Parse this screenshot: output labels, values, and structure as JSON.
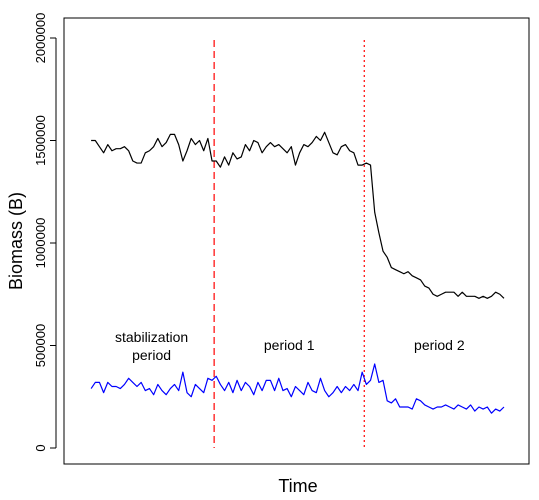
{
  "chart_data": {
    "type": "line",
    "title": "",
    "xlabel": "Time",
    "ylabel": "Biomass (B)",
    "ylim": [
      0,
      2000000
    ],
    "yticks": [
      0,
      500000,
      1000000,
      1500000,
      2000000
    ],
    "ytick_labels": [
      "0",
      "500000",
      "1000000",
      "1500000",
      "2000000"
    ],
    "grid": false,
    "legend": null,
    "x": [
      1,
      2,
      3,
      4,
      5,
      6,
      7,
      8,
      9,
      10,
      11,
      12,
      13,
      14,
      15,
      16,
      17,
      18,
      19,
      20,
      21,
      22,
      23,
      24,
      25,
      26,
      27,
      28,
      29,
      30,
      31,
      32,
      33,
      34,
      35,
      36,
      37,
      38,
      39,
      40,
      41,
      42,
      43,
      44,
      45,
      46,
      47,
      48,
      49,
      50,
      51,
      52,
      53,
      54,
      55,
      56,
      57,
      58,
      59,
      60,
      61,
      62,
      63,
      64,
      65,
      66,
      67,
      68,
      69,
      70,
      71,
      72,
      73,
      74,
      75,
      76,
      77,
      78,
      79,
      80,
      81,
      82,
      83,
      84,
      85,
      86,
      87,
      88,
      89,
      90,
      91,
      92,
      93,
      94,
      95,
      96,
      97,
      98,
      99,
      100
    ],
    "xlim": [
      -5.5,
      106
    ],
    "series": [
      {
        "color": "#000000",
        "values": [
          1500000,
          1500000,
          1470000,
          1440000,
          1480000,
          1450000,
          1460000,
          1460000,
          1470000,
          1450000,
          1400000,
          1390000,
          1390000,
          1440000,
          1450000,
          1470000,
          1510000,
          1470000,
          1490000,
          1530000,
          1530000,
          1480000,
          1400000,
          1450000,
          1510000,
          1480000,
          1500000,
          1450000,
          1510000,
          1400000,
          1400000,
          1370000,
          1420000,
          1380000,
          1440000,
          1410000,
          1420000,
          1480000,
          1450000,
          1500000,
          1490000,
          1440000,
          1470000,
          1490000,
          1470000,
          1480000,
          1460000,
          1440000,
          1470000,
          1380000,
          1440000,
          1480000,
          1470000,
          1490000,
          1520000,
          1500000,
          1540000,
          1490000,
          1440000,
          1430000,
          1470000,
          1480000,
          1450000,
          1440000,
          1380000,
          1380000,
          1390000,
          1380000,
          1150000,
          1050000,
          960000,
          930000,
          880000,
          870000,
          860000,
          850000,
          860000,
          840000,
          830000,
          820000,
          790000,
          780000,
          750000,
          740000,
          750000,
          760000,
          760000,
          760000,
          740000,
          760000,
          740000,
          740000,
          740000,
          730000,
          740000,
          730000,
          740000,
          760000,
          750000,
          730000
        ]
      },
      {
        "color": "#0000ff",
        "values": [
          290000,
          320000,
          320000,
          270000,
          320000,
          300000,
          300000,
          290000,
          310000,
          340000,
          320000,
          300000,
          320000,
          280000,
          290000,
          260000,
          310000,
          280000,
          260000,
          290000,
          310000,
          280000,
          370000,
          270000,
          250000,
          310000,
          290000,
          270000,
          340000,
          330000,
          350000,
          310000,
          280000,
          320000,
          270000,
          330000,
          280000,
          320000,
          300000,
          260000,
          320000,
          280000,
          330000,
          330000,
          280000,
          340000,
          280000,
          290000,
          250000,
          300000,
          280000,
          260000,
          320000,
          280000,
          270000,
          340000,
          280000,
          250000,
          270000,
          300000,
          270000,
          300000,
          280000,
          310000,
          280000,
          370000,
          310000,
          330000,
          410000,
          320000,
          330000,
          230000,
          220000,
          240000,
          200000,
          200000,
          200000,
          190000,
          240000,
          230000,
          210000,
          200000,
          190000,
          200000,
          200000,
          210000,
          200000,
          190000,
          210000,
          200000,
          190000,
          210000,
          180000,
          200000,
          190000,
          200000,
          170000,
          190000,
          180000,
          200000
        ]
      }
    ],
    "vlines": [
      {
        "x": 30.5,
        "color": "#ff0000",
        "style": "dashed"
      },
      {
        "x": 66.5,
        "color": "#ff0000",
        "style": "dotted"
      }
    ],
    "annotations": [
      {
        "lines": [
          "stabilization",
          "period"
        ],
        "x": 15.5,
        "y": 500000
      },
      {
        "lines": [
          "period 1"
        ],
        "x": 48.5,
        "y": 500000
      },
      {
        "lines": [
          "period 2"
        ],
        "x": 84.5,
        "y": 500000
      }
    ]
  }
}
